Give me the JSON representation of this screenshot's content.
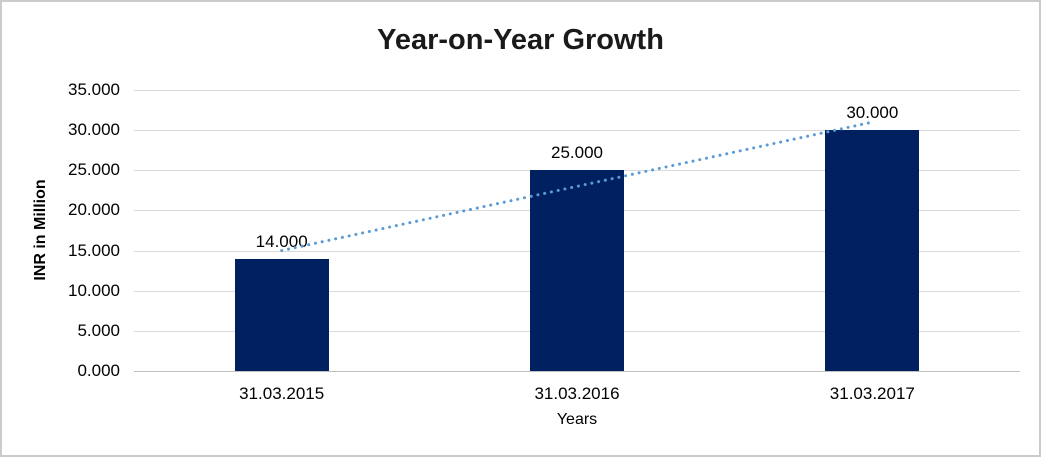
{
  "chart_data": {
    "type": "bar",
    "title": "Year-on-Year Growth",
    "xlabel": "Years",
    "ylabel": "INR in Million",
    "categories": [
      "31.03.2015",
      "31.03.2016",
      "31.03.2017"
    ],
    "values": [
      14000,
      25000,
      30000
    ],
    "data_labels": [
      "14.000",
      "25.000",
      "30.000"
    ],
    "y_axis": {
      "min": 0,
      "max": 35000,
      "step": 5000,
      "tick_labels": [
        "0.000",
        "5.000",
        "10.000",
        "15.000",
        "20.000",
        "25.000",
        "30.000",
        "35.000"
      ]
    },
    "grid": true,
    "legend": false,
    "trendline": {
      "style": "dotted",
      "start_value": 15000,
      "end_value": 31000
    },
    "colors": {
      "bar": "#002060",
      "trendline": "#5b9bd5",
      "gridline": "#d9d9d9",
      "axis_line": "#bfbfbf",
      "text": "#000000",
      "background": "#ffffff",
      "border": "#cbcbcb"
    }
  }
}
